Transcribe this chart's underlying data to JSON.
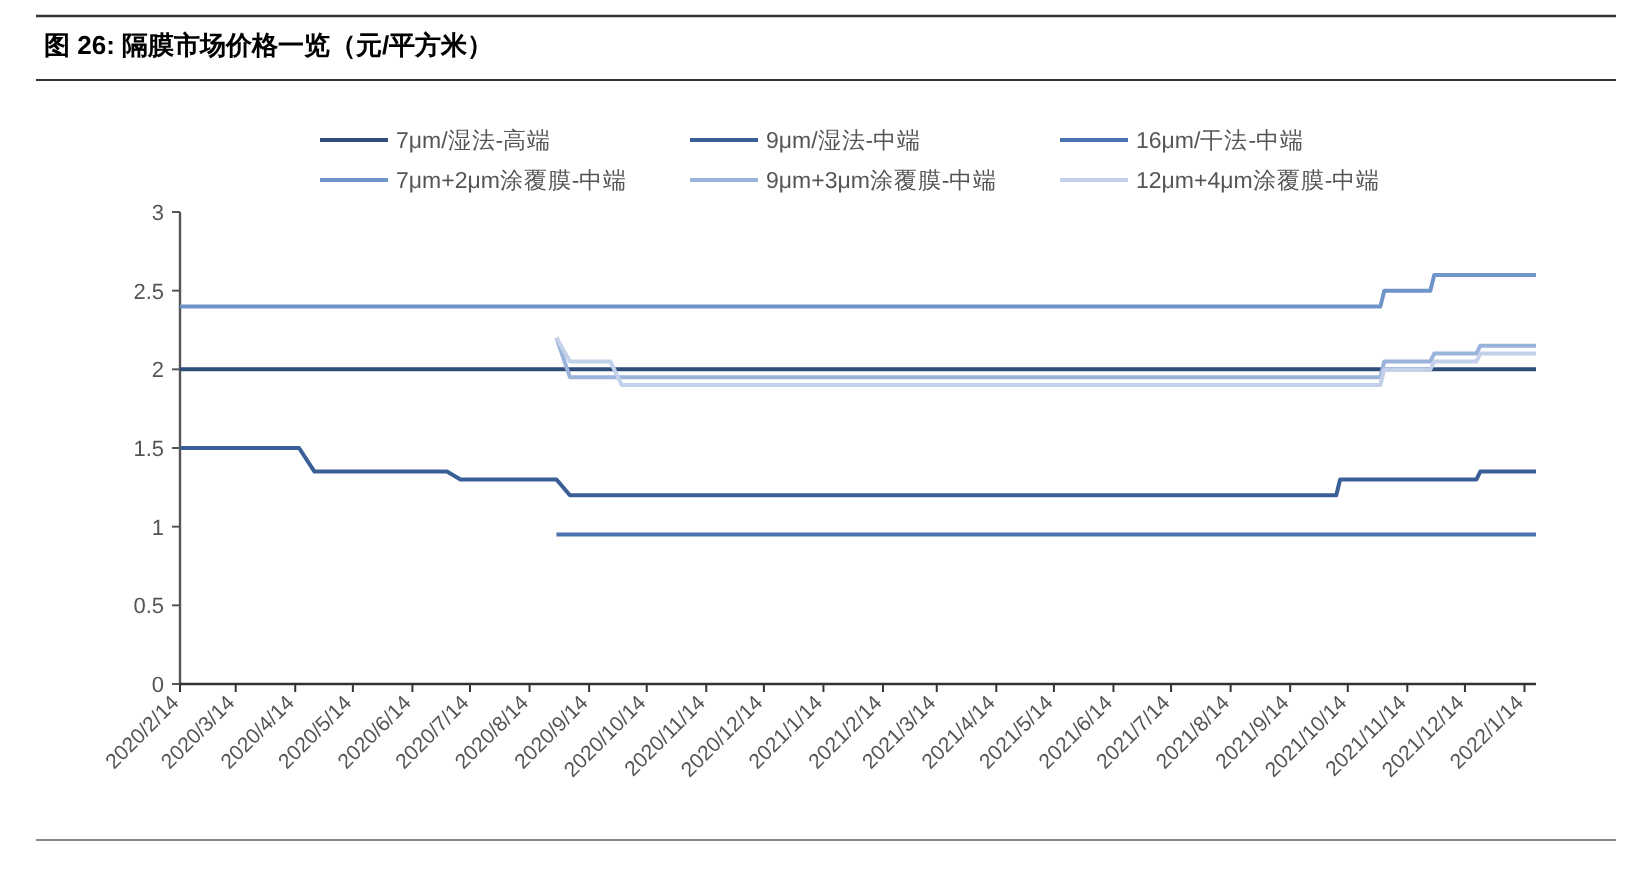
{
  "chart_data": {
    "type": "line",
    "title": "图 26:  隔膜市场价格一览（元/平方米）",
    "xlim": [
      "2020-02-14",
      "2022-01-20"
    ],
    "ylim": [
      0,
      3
    ],
    "yticks": [
      0,
      0.5,
      1,
      1.5,
      2,
      2.5,
      3
    ],
    "xticks": [
      {
        "value": "2020-02-14",
        "label": "2020/2/14"
      },
      {
        "value": "2020-03-14",
        "label": "2020/3/14"
      },
      {
        "value": "2020-04-14",
        "label": "2020/4/14"
      },
      {
        "value": "2020-05-14",
        "label": "2020/5/14"
      },
      {
        "value": "2020-06-14",
        "label": "2020/6/14"
      },
      {
        "value": "2020-07-14",
        "label": "2020/7/14"
      },
      {
        "value": "2020-08-14",
        "label": "2020/8/14"
      },
      {
        "value": "2020-09-14",
        "label": "2020/9/14"
      },
      {
        "value": "2020-10-14",
        "label": "2020/10/14"
      },
      {
        "value": "2020-11-14",
        "label": "2020/11/14"
      },
      {
        "value": "2020-12-14",
        "label": "2020/12/14"
      },
      {
        "value": "2021-01-14",
        "label": "2021/1/14"
      },
      {
        "value": "2021-02-14",
        "label": "2021/2/14"
      },
      {
        "value": "2021-03-14",
        "label": "2021/3/14"
      },
      {
        "value": "2021-04-14",
        "label": "2021/4/14"
      },
      {
        "value": "2021-05-14",
        "label": "2021/5/14"
      },
      {
        "value": "2021-06-14",
        "label": "2021/6/14"
      },
      {
        "value": "2021-07-14",
        "label": "2021/7/14"
      },
      {
        "value": "2021-08-14",
        "label": "2021/8/14"
      },
      {
        "value": "2021-09-14",
        "label": "2021/9/14"
      },
      {
        "value": "2021-10-14",
        "label": "2021/10/14"
      },
      {
        "value": "2021-11-14",
        "label": "2021/11/14"
      },
      {
        "value": "2021-12-14",
        "label": "2021/12/14"
      },
      {
        "value": "2022-01-14",
        "label": "2022/1/14"
      }
    ],
    "grid": false,
    "legend": "top",
    "marker": "none",
    "line_style": "solid",
    "series": [
      {
        "name": "7μm/湿法-高端",
        "color": "#2e4d7b",
        "x": [
          "2020-02-14",
          "2022-01-20"
        ],
        "values": [
          2,
          2
        ]
      },
      {
        "name": "9μm/湿法-中端",
        "color": "#3a5f96",
        "x": [
          "2020-02-14",
          "2020-04-16",
          "2020-04-24",
          "2020-07-02",
          "2020-07-09",
          "2020-08-28",
          "2020-09-04",
          "2021-10-08",
          "2021-10-10",
          "2021-12-20",
          "2021-12-22",
          "2022-01-20"
        ],
        "values": [
          1.5,
          1.5,
          1.35,
          1.35,
          1.3,
          1.3,
          1.2,
          1.2,
          1.3,
          1.3,
          1.35,
          1.35
        ]
      },
      {
        "name": "16μm/干法-中端",
        "color": "#4a74b0",
        "x": [
          "2020-08-28",
          "2022-01-20"
        ],
        "values": [
          0.95,
          0.95
        ]
      },
      {
        "name": "7μm+2μm涂覆膜-中端",
        "color": "#6f94c8",
        "x": [
          "2020-02-14",
          "2021-10-31",
          "2021-11-02",
          "2021-11-26",
          "2021-11-28",
          "2022-01-20"
        ],
        "values": [
          2.4,
          2.4,
          2.5,
          2.5,
          2.6,
          2.6
        ]
      },
      {
        "name": "9μm+3μm涂覆膜-中端",
        "color": "#9ab3da",
        "x": [
          "2020-08-28",
          "2020-09-04",
          "2021-10-31",
          "2021-11-02",
          "2021-11-26",
          "2021-11-28",
          "2021-12-20",
          "2021-12-22",
          "2022-01-20"
        ],
        "values": [
          2.2,
          1.95,
          1.95,
          2.05,
          2.05,
          2.1,
          2.1,
          2.15,
          2.15
        ]
      },
      {
        "name": "12μm+4μm涂覆膜-中端",
        "color": "#c2d0e9",
        "x": [
          "2020-08-28",
          "2020-09-04",
          "2020-09-25",
          "2020-10-01",
          "2021-10-31",
          "2021-11-02",
          "2021-11-26",
          "2021-11-28",
          "2021-12-20",
          "2021-12-22",
          "2022-01-20"
        ],
        "values": [
          2.2,
          2.05,
          2.05,
          1.9,
          1.9,
          2.0,
          2.0,
          2.05,
          2.05,
          2.1,
          2.1
        ]
      }
    ]
  }
}
